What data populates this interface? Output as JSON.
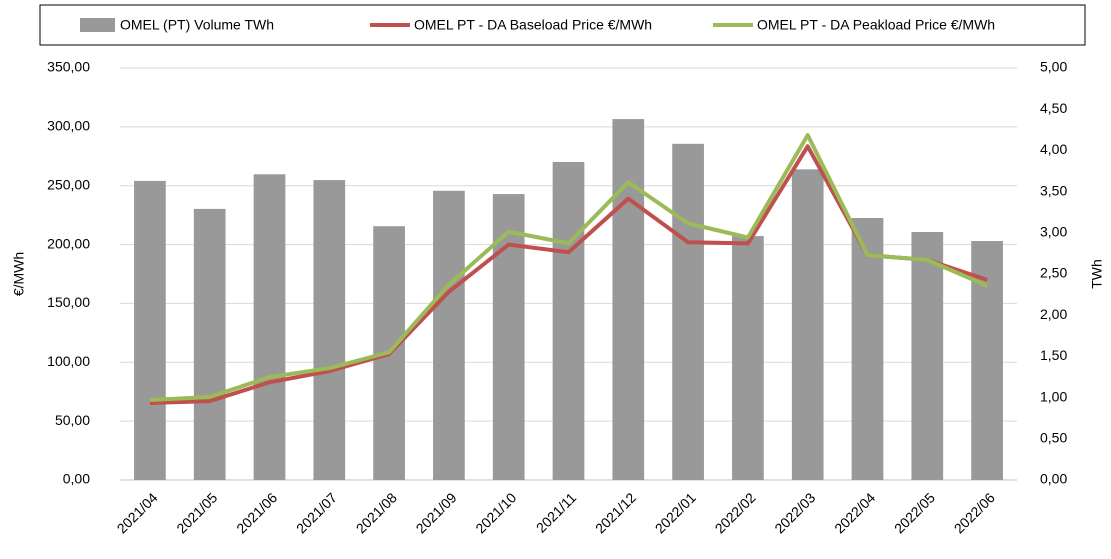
{
  "chart_data": {
    "type": "bar-line",
    "categories": [
      "2021/04",
      "2021/05",
      "2021/06",
      "2021/07",
      "2021/08",
      "2021/09",
      "2021/10",
      "2021/11",
      "2021/12",
      "2022/01",
      "2022/02",
      "2022/03",
      "2022/04",
      "2022/05",
      "2022/06"
    ],
    "series": [
      {
        "name": "OMEL (PT) Volume TWh",
        "type": "bar",
        "axis": "y2",
        "color": "#999999",
        "values": [
          3.63,
          3.29,
          3.71,
          3.64,
          3.08,
          3.51,
          3.47,
          3.86,
          4.38,
          4.08,
          2.96,
          3.77,
          3.18,
          3.01,
          2.9
        ]
      },
      {
        "name": "OMEL PT - DA Baseload Price €/MWh",
        "type": "line",
        "color": "#c0504d",
        "values": [
          65.4,
          67,
          83,
          92.5,
          107,
          160,
          200,
          193.5,
          239,
          202,
          201,
          283.5,
          191,
          187,
          170
        ]
      },
      {
        "name": "OMEL PT - DA Peakload Price €/MWh",
        "type": "line",
        "color": "#9bbb59",
        "values": [
          68,
          70.5,
          87.5,
          95,
          108.5,
          166,
          211,
          201,
          253,
          218,
          206,
          293,
          191,
          187,
          165
        ]
      }
    ],
    "ylabel": "€/MWh",
    "y2label": "TWh",
    "ylim": [
      0,
      350
    ],
    "yticks": [
      {
        "value": 0,
        "label": "0,00"
      },
      {
        "value": 50,
        "label": "50,00"
      },
      {
        "value": 100,
        "label": "100,00"
      },
      {
        "value": 150,
        "label": "150,00"
      },
      {
        "value": 200,
        "label": "200,00"
      },
      {
        "value": 250,
        "label": "250,00"
      },
      {
        "value": 300,
        "label": "300,00"
      },
      {
        "value": 350,
        "label": "350,00"
      }
    ],
    "y2lim": [
      0,
      5
    ],
    "y2ticks": [
      {
        "value": 0,
        "label": "0,00"
      },
      {
        "value": 0.5,
        "label": "0,50"
      },
      {
        "value": 1,
        "label": "1,00"
      },
      {
        "value": 1.5,
        "label": "1,50"
      },
      {
        "value": 2,
        "label": "2,00"
      },
      {
        "value": 2.5,
        "label": "2,50"
      },
      {
        "value": 3,
        "label": "3,00"
      },
      {
        "value": 3.5,
        "label": "3,50"
      },
      {
        "value": 4,
        "label": "4,00"
      },
      {
        "value": 4.5,
        "label": "4,50"
      },
      {
        "value": 5,
        "label": "5,00"
      }
    ],
    "grid": true,
    "legend": "top"
  }
}
